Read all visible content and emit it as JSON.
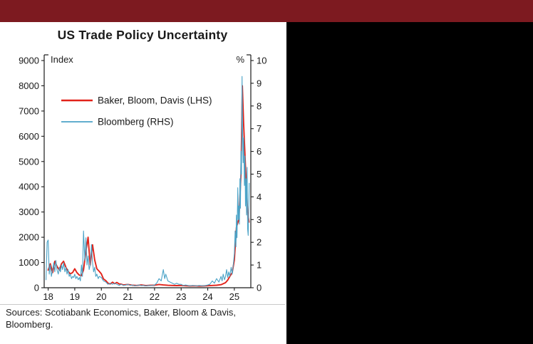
{
  "page": {
    "top_bar_color": "#7d1a20",
    "side_panel_color": "#000000",
    "axis_color": "#1a1a1a"
  },
  "title": "US Trade Policy Uncertainty",
  "sources": "Sources: Scotiabank Economics, Baker, Bloom & Davis, Bloomberg.",
  "chart_data": {
    "type": "line",
    "title": "US Trade Policy Uncertainty",
    "legend_position": "top-left-inside",
    "grid": false,
    "left_axis": {
      "label": "Index",
      "ylim": [
        0,
        9000
      ],
      "ticks": [
        0,
        1000,
        2000,
        3000,
        4000,
        5000,
        6000,
        7000,
        8000,
        9000
      ]
    },
    "right_axis": {
      "label": "%",
      "ylim": [
        0,
        10
      ],
      "ticks": [
        0,
        1,
        2,
        3,
        4,
        5,
        6,
        7,
        8,
        9,
        10
      ]
    },
    "x_axis": {
      "range": [
        17.85,
        25.62
      ],
      "ticks": [
        18,
        19,
        20,
        21,
        22,
        23,
        24,
        25
      ]
    },
    "series": [
      {
        "name": "Baker, Bloom, Davis (LHS)",
        "axis": "left",
        "color": "#e2231a",
        "width": 1.9,
        "x": [
          18.0,
          18.08,
          18.17,
          18.25,
          18.33,
          18.42,
          18.5,
          18.58,
          18.67,
          18.75,
          18.83,
          18.92,
          19.0,
          19.08,
          19.17,
          19.25,
          19.33,
          19.42,
          19.5,
          19.58,
          19.67,
          19.75,
          19.83,
          19.92,
          20.0,
          20.08,
          20.17,
          20.25,
          20.33,
          20.42,
          20.5,
          20.58,
          20.67,
          20.75,
          20.83,
          20.92,
          21.0,
          21.17,
          21.33,
          21.5,
          21.67,
          21.83,
          22.0,
          22.17,
          22.33,
          22.5,
          22.67,
          22.83,
          23.0,
          23.17,
          23.33,
          23.5,
          23.67,
          23.83,
          24.0,
          24.17,
          24.33,
          24.5,
          24.67,
          24.75,
          24.83,
          24.92,
          25.0,
          25.08,
          25.17,
          25.25,
          25.3,
          25.35,
          25.42,
          25.5,
          25.55
        ],
        "values": [
          700,
          950,
          600,
          1050,
          850,
          700,
          950,
          1050,
          800,
          650,
          550,
          600,
          750,
          600,
          500,
          480,
          700,
          1450,
          2000,
          900,
          1700,
          1100,
          750,
          650,
          550,
          350,
          280,
          180,
          150,
          220,
          160,
          210,
          150,
          140,
          110,
          120,
          130,
          100,
          90,
          110,
          85,
          95,
          100,
          130,
          110,
          95,
          90,
          85,
          90,
          80,
          70,
          75,
          65,
          70,
          80,
          90,
          100,
          120,
          200,
          300,
          450,
          600,
          1100,
          2400,
          2700,
          4500,
          8000,
          6500,
          4800,
          3000,
          2600
        ]
      },
      {
        "name": "Bloomberg (RHS)",
        "axis": "right",
        "color": "#4ba3c7",
        "width": 1.1,
        "x": [
          17.92,
          17.96,
          18.0,
          18.04,
          18.08,
          18.12,
          18.17,
          18.21,
          18.25,
          18.29,
          18.33,
          18.38,
          18.42,
          18.46,
          18.5,
          18.54,
          18.58,
          18.63,
          18.67,
          18.71,
          18.75,
          18.79,
          18.83,
          18.88,
          18.92,
          18.96,
          19.0,
          19.04,
          19.08,
          19.13,
          19.17,
          19.21,
          19.25,
          19.29,
          19.33,
          19.38,
          19.42,
          19.46,
          19.5,
          19.54,
          19.58,
          19.63,
          19.67,
          19.71,
          19.75,
          19.79,
          19.83,
          19.88,
          19.92,
          20.0,
          20.08,
          20.17,
          20.25,
          20.33,
          20.42,
          20.5,
          20.58,
          20.67,
          20.75,
          20.83,
          20.92,
          21.0,
          21.08,
          21.17,
          21.25,
          21.33,
          21.42,
          21.5,
          21.58,
          21.67,
          21.75,
          21.83,
          21.92,
          22.0,
          22.08,
          22.17,
          22.25,
          22.33,
          22.38,
          22.42,
          22.5,
          22.58,
          22.67,
          22.75,
          22.83,
          22.92,
          23.0,
          23.08,
          23.17,
          23.25,
          23.33,
          23.42,
          23.5,
          23.58,
          23.67,
          23.75,
          23.83,
          23.92,
          24.0,
          24.08,
          24.17,
          24.25,
          24.33,
          24.42,
          24.5,
          24.54,
          24.58,
          24.63,
          24.67,
          24.71,
          24.75,
          24.79,
          24.83,
          24.88,
          24.92,
          24.96,
          25.0,
          25.03,
          25.06,
          25.08,
          25.1,
          25.13,
          25.15,
          25.17,
          25.19,
          25.21,
          25.23,
          25.25,
          25.27,
          25.29,
          25.31,
          25.33,
          25.35,
          25.38,
          25.4,
          25.42,
          25.44,
          25.46,
          25.48,
          25.5,
          25.52,
          25.54,
          25.56
        ],
        "values": [
          0.35,
          2.0,
          2.1,
          0.6,
          1.0,
          0.5,
          0.8,
          1.1,
          0.7,
          1.2,
          0.8,
          0.6,
          0.9,
          0.7,
          1.0,
          0.8,
          1.1,
          0.7,
          0.9,
          0.6,
          0.8,
          0.5,
          0.6,
          0.4,
          0.5,
          0.45,
          0.6,
          0.4,
          0.5,
          0.35,
          0.45,
          0.3,
          1.0,
          0.5,
          2.5,
          1.2,
          2.2,
          1.0,
          1.4,
          0.8,
          1.0,
          1.9,
          1.1,
          0.7,
          0.9,
          0.5,
          0.6,
          0.4,
          0.5,
          0.45,
          0.3,
          0.25,
          0.15,
          0.2,
          0.15,
          0.2,
          0.15,
          0.1,
          0.15,
          0.1,
          0.12,
          0.15,
          0.1,
          0.12,
          0.08,
          0.1,
          0.12,
          0.09,
          0.1,
          0.08,
          0.1,
          0.09,
          0.1,
          0.12,
          0.2,
          0.4,
          0.3,
          0.8,
          0.4,
          0.6,
          0.3,
          0.25,
          0.2,
          0.15,
          0.2,
          0.15,
          0.15,
          0.1,
          0.12,
          0.1,
          0.08,
          0.1,
          0.09,
          0.08,
          0.1,
          0.09,
          0.08,
          0.1,
          0.12,
          0.15,
          0.3,
          0.2,
          0.4,
          0.25,
          0.5,
          0.3,
          0.6,
          0.35,
          0.5,
          0.8,
          0.45,
          0.7,
          0.5,
          0.9,
          0.6,
          1.0,
          1.5,
          2.5,
          1.8,
          3.2,
          2.2,
          4.4,
          3.0,
          3.6,
          2.8,
          4.8,
          3.5,
          6.0,
          5.0,
          9.3,
          7.0,
          5.5,
          6.6,
          4.5,
          5.8,
          3.6,
          4.8,
          3.2,
          5.3,
          2.6,
          2.3,
          3.4,
          4.6
        ]
      }
    ]
  }
}
